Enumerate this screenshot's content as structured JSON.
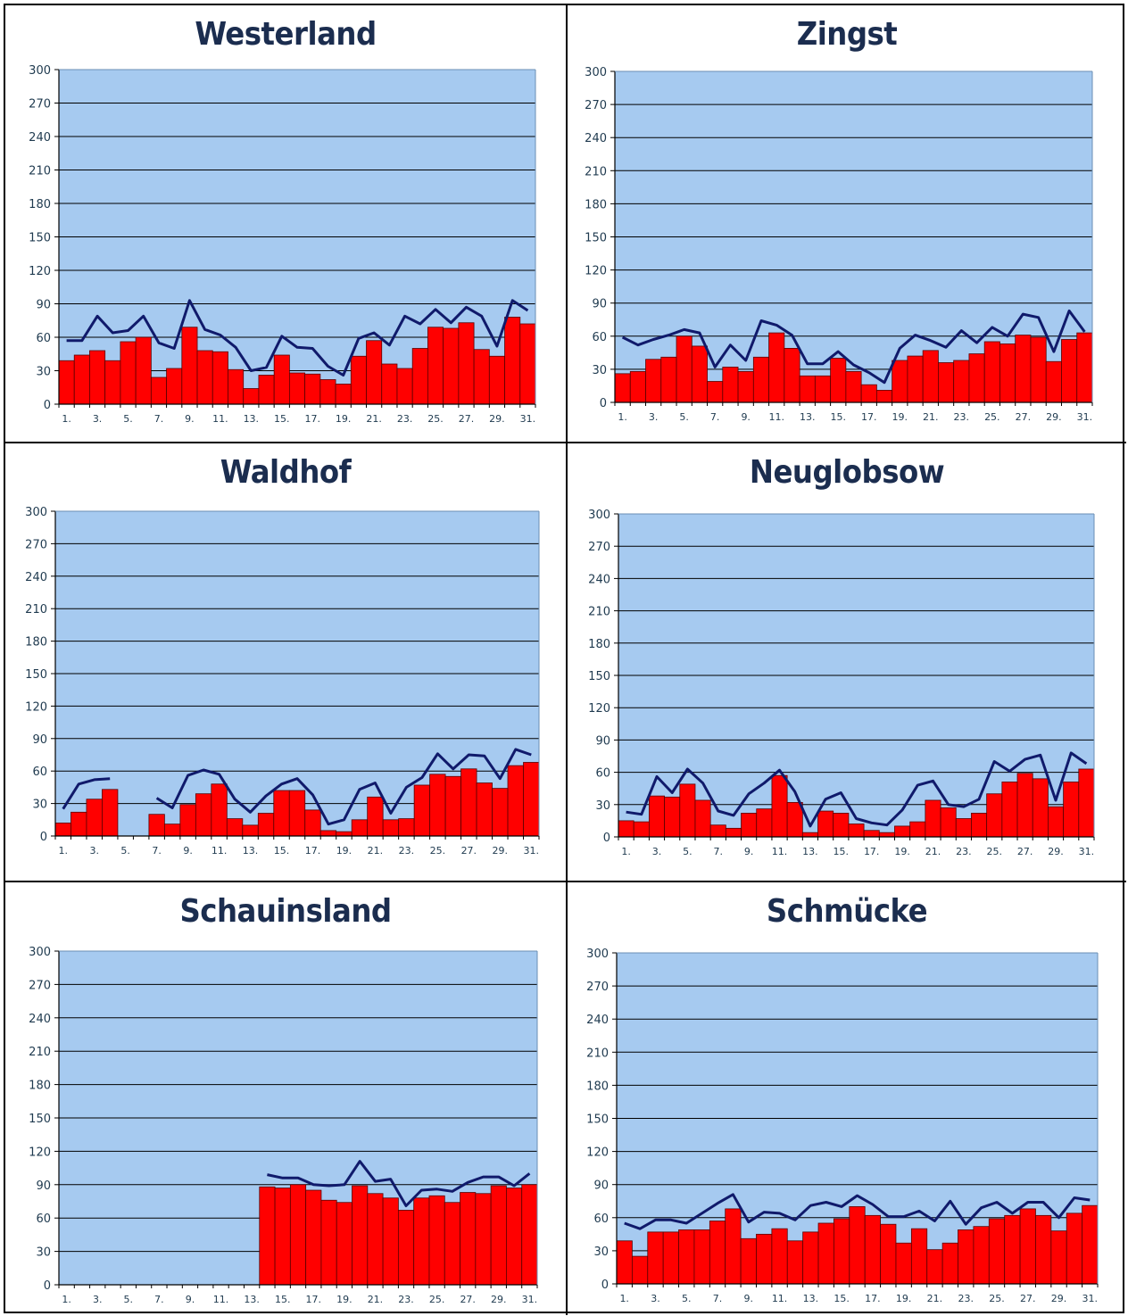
{
  "chart_data": [
    {
      "type": "bar",
      "title": "Westerland",
      "ylim": [
        0,
        300
      ],
      "yticks": [
        0,
        30,
        60,
        90,
        120,
        150,
        180,
        210,
        240,
        270,
        300
      ],
      "xtick_labels": [
        "1.",
        "3.",
        "5.",
        "7.",
        "9.",
        "11.",
        "13.",
        "15.",
        "17.",
        "19.",
        "21.",
        "23.",
        "25.",
        "27.",
        "29.",
        "31."
      ],
      "categories": [
        1,
        2,
        3,
        4,
        5,
        6,
        7,
        8,
        9,
        10,
        11,
        12,
        13,
        14,
        15,
        16,
        17,
        18,
        19,
        20,
        21,
        22,
        23,
        24,
        25,
        26,
        27,
        28,
        29,
        30,
        31
      ],
      "grid": true,
      "series": [
        {
          "kind": "bar",
          "color": "#ff0000",
          "values": [
            39,
            44,
            48,
            39,
            56,
            60,
            24,
            32,
            69,
            48,
            47,
            31,
            14,
            26,
            44,
            28,
            27,
            22,
            18,
            43,
            57,
            36,
            32,
            50,
            69,
            68,
            73,
            49,
            43,
            78,
            72
          ]
        },
        {
          "kind": "line",
          "color": "#101a6b",
          "values": [
            57,
            57,
            79,
            64,
            66,
            79,
            55,
            50,
            93,
            67,
            62,
            51,
            30,
            33,
            61,
            51,
            50,
            34,
            26,
            59,
            64,
            53,
            79,
            72,
            85,
            73,
            87,
            79,
            52,
            93,
            84
          ]
        }
      ]
    },
    {
      "type": "bar",
      "title": "Zingst",
      "ylim": [
        0,
        300
      ],
      "yticks": [
        0,
        30,
        60,
        90,
        120,
        150,
        180,
        210,
        240,
        270,
        300
      ],
      "xtick_labels": [
        "1.",
        "3.",
        "5.",
        "7.",
        "9.",
        "11.",
        "13.",
        "15.",
        "17.",
        "19.",
        "21.",
        "23.",
        "25.",
        "27.",
        "29.",
        "31."
      ],
      "categories": [
        1,
        2,
        3,
        4,
        5,
        6,
        7,
        8,
        9,
        10,
        11,
        12,
        13,
        14,
        15,
        16,
        17,
        18,
        19,
        20,
        21,
        22,
        23,
        24,
        25,
        26,
        27,
        28,
        29,
        30,
        31
      ],
      "grid": true,
      "series": [
        {
          "kind": "bar",
          "color": "#ff0000",
          "values": [
            26,
            28,
            39,
            41,
            60,
            51,
            19,
            32,
            28,
            41,
            63,
            49,
            24,
            24,
            40,
            28,
            16,
            11,
            38,
            42,
            47,
            36,
            38,
            44,
            55,
            53,
            61,
            59,
            37,
            57,
            63
          ]
        },
        {
          "kind": "line",
          "color": "#101a6b",
          "values": [
            59,
            52,
            57,
            61,
            66,
            63,
            32,
            52,
            38,
            74,
            70,
            61,
            35,
            35,
            46,
            34,
            27,
            18,
            49,
            61,
            56,
            50,
            65,
            54,
            68,
            60,
            80,
            77,
            46,
            83,
            64
          ]
        }
      ]
    },
    {
      "type": "bar",
      "title": "Waldhof",
      "ylim": [
        0,
        300
      ],
      "yticks": [
        0,
        30,
        60,
        90,
        120,
        150,
        180,
        210,
        240,
        270,
        300
      ],
      "xtick_labels": [
        "1.",
        "3.",
        "5.",
        "7.",
        "9.",
        "11.",
        "13.",
        "15.",
        "17.",
        "19.",
        "21.",
        "23.",
        "25.",
        "27.",
        "29.",
        "31."
      ],
      "categories": [
        1,
        2,
        3,
        4,
        5,
        6,
        7,
        8,
        9,
        10,
        11,
        12,
        13,
        14,
        15,
        16,
        17,
        18,
        19,
        20,
        21,
        22,
        23,
        24,
        25,
        26,
        27,
        28,
        29,
        30,
        31
      ],
      "grid": true,
      "series": [
        {
          "kind": "bar",
          "color": "#ff0000",
          "values": [
            12,
            22,
            34,
            43,
            null,
            null,
            20,
            11,
            29,
            39,
            48,
            16,
            10,
            21,
            42,
            42,
            24,
            5,
            4,
            15,
            36,
            15,
            16,
            47,
            57,
            55,
            62,
            49,
            44,
            65,
            68
          ]
        },
        {
          "kind": "line",
          "color": "#101a6b",
          "values": [
            25,
            48,
            52,
            53,
            null,
            null,
            35,
            26,
            56,
            61,
            57,
            34,
            22,
            37,
            48,
            53,
            38,
            11,
            15,
            43,
            49,
            21,
            45,
            54,
            76,
            62,
            75,
            74,
            53,
            80,
            75
          ]
        }
      ]
    },
    {
      "type": "bar",
      "title": "Neuglobsow",
      "ylim": [
        0,
        300
      ],
      "yticks": [
        0,
        30,
        60,
        90,
        120,
        150,
        180,
        210,
        240,
        270,
        300
      ],
      "xtick_labels": [
        "1.",
        "3.",
        "5.",
        "7.",
        "9.",
        "11.",
        "13.",
        "15.",
        "17.",
        "19.",
        "21.",
        "23.",
        "25.",
        "27.",
        "29.",
        "31."
      ],
      "categories": [
        1,
        2,
        3,
        4,
        5,
        6,
        7,
        8,
        9,
        10,
        11,
        12,
        13,
        14,
        15,
        16,
        17,
        18,
        19,
        20,
        21,
        22,
        23,
        24,
        25,
        26,
        27,
        28,
        29,
        30,
        31
      ],
      "grid": true,
      "series": [
        {
          "kind": "bar",
          "color": "#ff0000",
          "values": [
            15,
            14,
            38,
            37,
            49,
            34,
            11,
            8,
            22,
            26,
            57,
            32,
            4,
            24,
            22,
            12,
            6,
            4,
            10,
            14,
            34,
            27,
            17,
            22,
            40,
            51,
            59,
            54,
            28,
            51,
            63
          ]
        },
        {
          "kind": "line",
          "color": "#101a6b",
          "values": [
            23,
            21,
            56,
            41,
            63,
            50,
            24,
            20,
            40,
            50,
            62,
            42,
            10,
            35,
            41,
            17,
            13,
            11,
            25,
            48,
            52,
            30,
            28,
            35,
            70,
            61,
            72,
            76,
            34,
            78,
            68
          ]
        }
      ]
    },
    {
      "type": "bar",
      "title": "Schauinsland",
      "ylim": [
        0,
        300
      ],
      "yticks": [
        0,
        30,
        60,
        90,
        120,
        150,
        180,
        210,
        240,
        270,
        300
      ],
      "xtick_labels": [
        "1.",
        "3.",
        "5.",
        "7.",
        "9.",
        "11.",
        "13.",
        "15.",
        "17.",
        "19.",
        "21.",
        "23.",
        "25.",
        "27.",
        "29.",
        "31."
      ],
      "categories": [
        1,
        2,
        3,
        4,
        5,
        6,
        7,
        8,
        9,
        10,
        11,
        12,
        13,
        14,
        15,
        16,
        17,
        18,
        19,
        20,
        21,
        22,
        23,
        24,
        25,
        26,
        27,
        28,
        29,
        30,
        31
      ],
      "grid": true,
      "series": [
        {
          "kind": "bar",
          "color": "#ff0000",
          "values": [
            null,
            null,
            null,
            null,
            null,
            null,
            null,
            null,
            null,
            null,
            null,
            null,
            null,
            88,
            87,
            90,
            85,
            76,
            74,
            89,
            82,
            78,
            67,
            78,
            80,
            74,
            83,
            82,
            89,
            87,
            90
          ]
        },
        {
          "kind": "line",
          "color": "#101a6b",
          "values": [
            null,
            null,
            null,
            null,
            null,
            null,
            null,
            null,
            null,
            null,
            null,
            null,
            null,
            99,
            96,
            96,
            90,
            89,
            90,
            111,
            93,
            95,
            71,
            85,
            86,
            84,
            92,
            97,
            97,
            89,
            100
          ]
        }
      ]
    },
    {
      "type": "bar",
      "title": "Schmücke",
      "ylim": [
        0,
        300
      ],
      "yticks": [
        0,
        30,
        60,
        90,
        120,
        150,
        180,
        210,
        240,
        270,
        300
      ],
      "xtick_labels": [
        "1.",
        "3.",
        "5.",
        "7.",
        "9.",
        "11.",
        "13.",
        "15.",
        "17.",
        "19.",
        "21.",
        "23.",
        "25.",
        "27.",
        "29.",
        "31."
      ],
      "categories": [
        1,
        2,
        3,
        4,
        5,
        6,
        7,
        8,
        9,
        10,
        11,
        12,
        13,
        14,
        15,
        16,
        17,
        18,
        19,
        20,
        21,
        22,
        23,
        24,
        25,
        26,
        27,
        28,
        29,
        30,
        31
      ],
      "grid": true,
      "series": [
        {
          "kind": "bar",
          "color": "#ff0000",
          "values": [
            39,
            25,
            47,
            47,
            49,
            49,
            57,
            68,
            41,
            45,
            50,
            39,
            47,
            55,
            59,
            70,
            62,
            54,
            37,
            50,
            31,
            37,
            49,
            52,
            59,
            62,
            68,
            62,
            48,
            64,
            71
          ]
        },
        {
          "kind": "line",
          "color": "#101a6b",
          "values": [
            55,
            50,
            58,
            58,
            55,
            64,
            73,
            81,
            56,
            65,
            64,
            58,
            71,
            74,
            70,
            80,
            72,
            61,
            61,
            66,
            57,
            75,
            54,
            69,
            74,
            64,
            74,
            74,
            60,
            78,
            76
          ]
        }
      ]
    }
  ]
}
